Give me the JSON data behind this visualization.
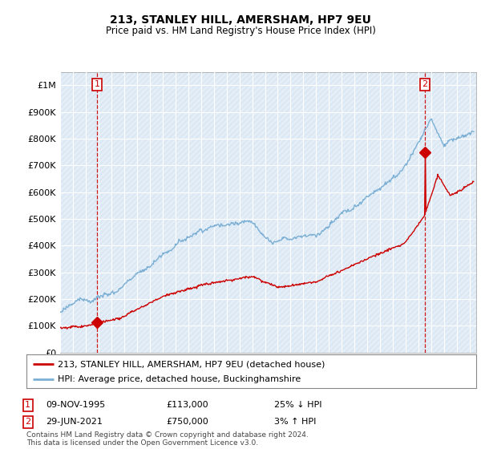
{
  "title": "213, STANLEY HILL, AMERSHAM, HP7 9EU",
  "subtitle": "Price paid vs. HM Land Registry's House Price Index (HPI)",
  "ylim": [
    0,
    1050000
  ],
  "yticks": [
    0,
    100000,
    200000,
    300000,
    400000,
    500000,
    600000,
    700000,
    800000,
    900000,
    1000000
  ],
  "ytick_labels": [
    "£0",
    "£100K",
    "£200K",
    "£300K",
    "£400K",
    "£500K",
    "£600K",
    "£700K",
    "£800K",
    "£900K",
    "£1M"
  ],
  "hpi_color": "#7bafd4",
  "price_color": "#cc0000",
  "dashed_color": "#cc0000",
  "plot_bg_color": "#dce9f5",
  "grid_color": "#ffffff",
  "legend_label_price": "213, STANLEY HILL, AMERSHAM, HP7 9EU (detached house)",
  "legend_label_hpi": "HPI: Average price, detached house, Buckinghamshire",
  "annotation1_date": "09-NOV-1995",
  "annotation1_price": "£113,000",
  "annotation1_hpi": "25% ↓ HPI",
  "annotation2_date": "29-JUN-2021",
  "annotation2_price": "£750,000",
  "annotation2_hpi": "3% ↑ HPI",
  "footnote": "Contains HM Land Registry data © Crown copyright and database right 2024.\nThis data is licensed under the Open Government Licence v3.0.",
  "sale1_x": 1995.87,
  "sale1_y": 113000,
  "sale2_x": 2021.5,
  "sale2_y": 750000,
  "xmin": 1993,
  "xmax": 2025.5
}
